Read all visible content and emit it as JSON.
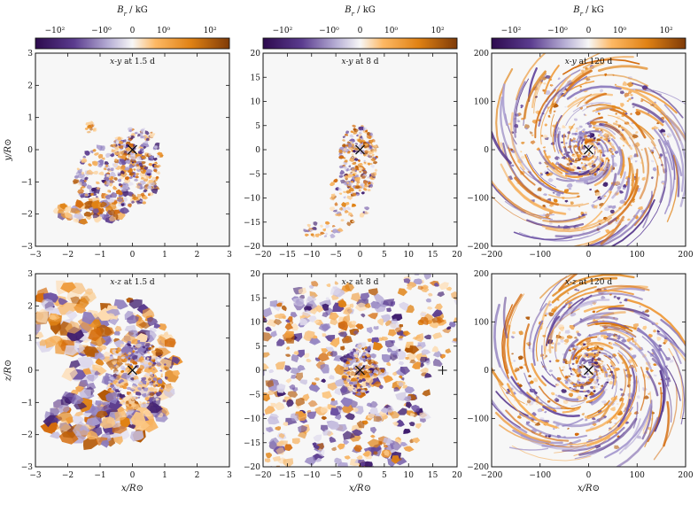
{
  "chart_data": {
    "type": "heatmap",
    "colorbar": {
      "label": "B_r / kG",
      "scale": "symlog",
      "ticks": [
        "−10²",
        "−10⁰",
        "0",
        "10⁰",
        "10²"
      ],
      "colormap": "PuOr_r",
      "colors": {
        "low": "#2d0a4e",
        "mid": "#f7f7f7",
        "high": "#7f3b08"
      }
    },
    "panels": [
      {
        "row": 0,
        "col": 0,
        "title": "x-y at 1.5 d",
        "xlim": [
          -3,
          3
        ],
        "ylim": [
          -3,
          3
        ],
        "ylabel": "y/R⊙",
        "xlabel": "",
        "xticks": [
          -3,
          -2,
          -1,
          0,
          1,
          2,
          3
        ],
        "yticks": [
          -3,
          -2,
          -1,
          0,
          1,
          2,
          3
        ],
        "markers": [
          {
            "symbol": "x",
            "x": 0,
            "y": 0
          }
        ]
      },
      {
        "row": 0,
        "col": 1,
        "title": "x-y at 8 d",
        "xlim": [
          -20,
          20
        ],
        "ylim": [
          -20,
          20
        ],
        "ylabel": "",
        "xlabel": "",
        "xticks": [
          -20,
          -15,
          -10,
          -5,
          0,
          5,
          10,
          15,
          20
        ],
        "yticks": [
          -20,
          -15,
          -10,
          -5,
          0,
          5,
          10,
          15,
          20
        ],
        "markers": [
          {
            "symbol": "x",
            "x": 0,
            "y": 0
          }
        ]
      },
      {
        "row": 0,
        "col": 2,
        "title": "x-y at 120 d",
        "xlim": [
          -200,
          200
        ],
        "ylim": [
          -200,
          200
        ],
        "ylabel": "",
        "xlabel": "",
        "xticks": [
          -200,
          -100,
          0,
          100,
          200
        ],
        "yticks": [
          -200,
          -100,
          0,
          100,
          200
        ],
        "markers": [
          {
            "symbol": "x",
            "x": 0,
            "y": 0
          }
        ]
      },
      {
        "row": 1,
        "col": 0,
        "title": "x-z at 1.5 d",
        "xlim": [
          -3,
          3
        ],
        "ylim": [
          -3,
          3
        ],
        "ylabel": "z/R⊙",
        "xlabel": "x/R⊙",
        "xticks": [
          -3,
          -2,
          -1,
          0,
          1,
          2,
          3
        ],
        "yticks": [
          -3,
          -2,
          -1,
          0,
          1,
          2,
          3
        ],
        "markers": [
          {
            "symbol": "x",
            "x": 0,
            "y": 0
          }
        ]
      },
      {
        "row": 1,
        "col": 1,
        "title": "x-z at 8 d",
        "xlim": [
          -20,
          20
        ],
        "ylim": [
          -20,
          20
        ],
        "ylabel": "",
        "xlabel": "x/R⊙",
        "xticks": [
          -20,
          -15,
          -10,
          -5,
          0,
          5,
          10,
          15,
          20
        ],
        "yticks": [
          -20,
          -15,
          -10,
          -5,
          0,
          5,
          10,
          15,
          20
        ],
        "markers": [
          {
            "symbol": "x",
            "x": 0,
            "y": 0
          },
          {
            "symbol": "+",
            "x": 17,
            "y": 0
          }
        ]
      },
      {
        "row": 1,
        "col": 2,
        "title": "x-z at 120 d",
        "xlim": [
          -200,
          200
        ],
        "ylim": [
          -200,
          200
        ],
        "ylabel": "",
        "xlabel": "x/R⊙",
        "xticks": [
          -200,
          -100,
          0,
          100,
          200
        ],
        "yticks": [
          -200,
          -100,
          0,
          100,
          200
        ],
        "markers": [
          {
            "symbol": "x",
            "x": 0,
            "y": 0
          }
        ]
      }
    ]
  }
}
